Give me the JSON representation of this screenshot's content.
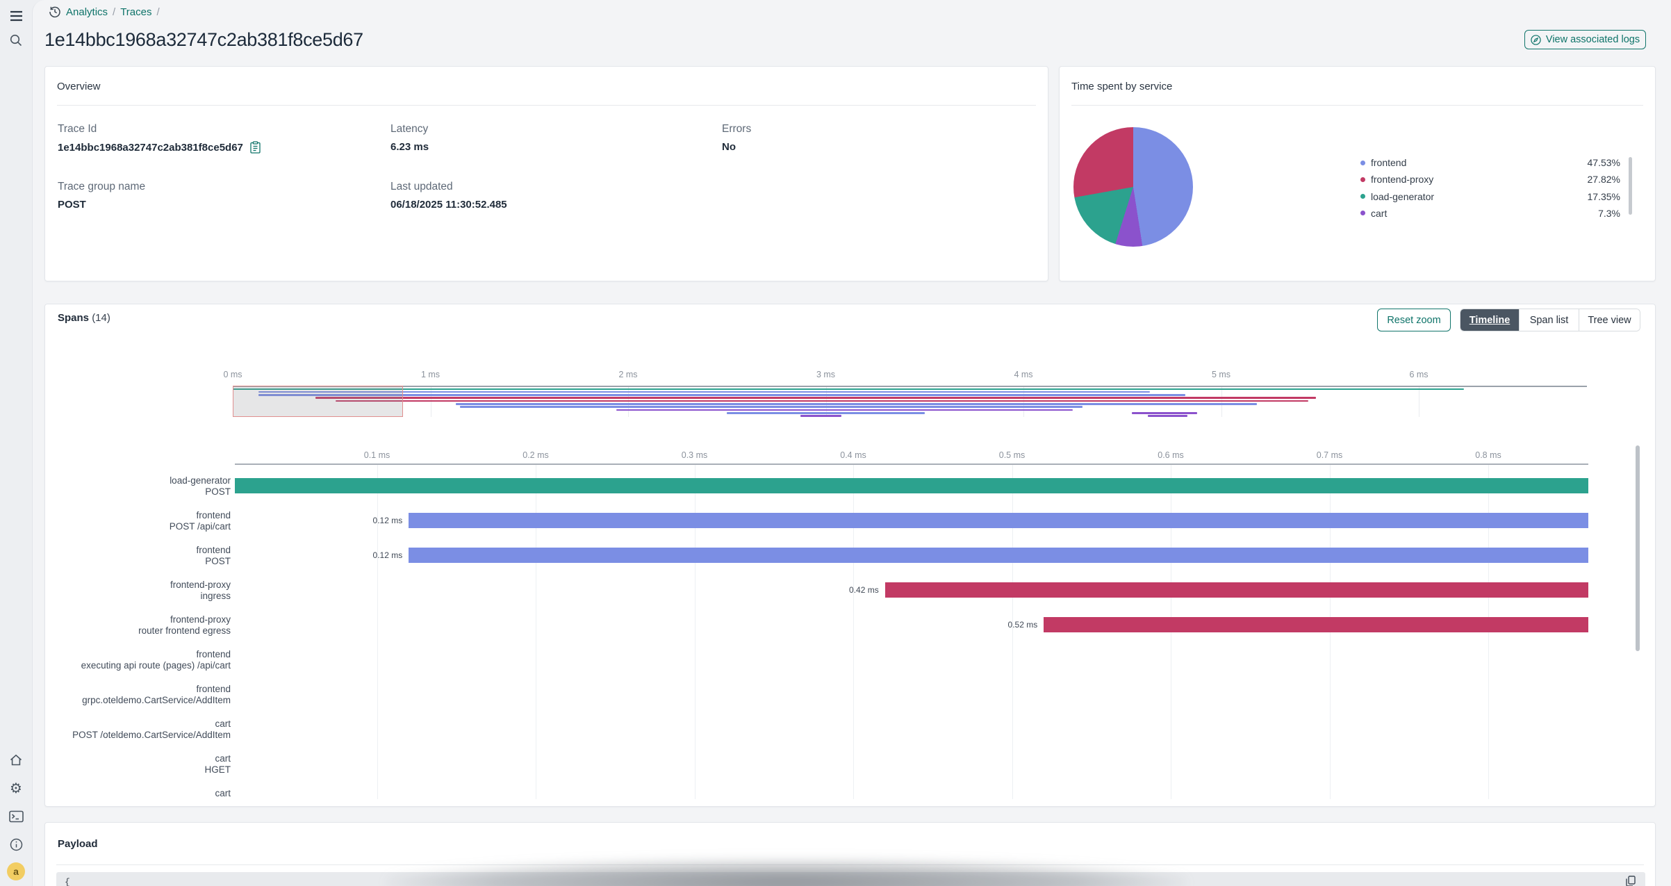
{
  "colors": {
    "accent_teal": "#0e7369",
    "active_tab_bg": "#4b5662",
    "teal": "#2ca28e",
    "blue": "#7b8ee4",
    "crimson": "#c23a64",
    "purple": "#8b52cc",
    "avatar_bg": "#f2cd62"
  },
  "sidebar": {
    "top_icons": [
      "menu",
      "search"
    ],
    "bottom_icons": [
      "home",
      "settings",
      "dev-console",
      "info"
    ],
    "avatar_letter": "a"
  },
  "breadcrumb": {
    "items": [
      "Analytics",
      "Traces"
    ],
    "separator": "/"
  },
  "header": {
    "title": "1e14bbc1968a32747c2ab381f8ce5d67",
    "view_logs_label": "View associated logs"
  },
  "overview": {
    "title": "Overview",
    "fields": [
      {
        "label": "Trace Id",
        "value": "1e14bbc1968a32747c2ab381f8ce5d67",
        "copyable": true
      },
      {
        "label": "Latency",
        "value": "6.23 ms"
      },
      {
        "label": "Errors",
        "value": "No"
      },
      {
        "label": "Trace group name",
        "value": "POST"
      },
      {
        "label": "Last updated",
        "value": "06/18/2025 11:30:52.485"
      }
    ]
  },
  "time_spent": {
    "title": "Time spent by service",
    "chart_data": {
      "type": "pie",
      "legend_position": "right",
      "series": [
        {
          "label": "frontend",
          "value": 47.53,
          "pct": "47.53%",
          "color": "#7b8ee4"
        },
        {
          "label": "frontend-proxy",
          "value": 27.82,
          "pct": "27.82%",
          "color": "#c23a64"
        },
        {
          "label": "load-generator",
          "value": 17.35,
          "pct": "17.35%",
          "color": "#2ca28e"
        },
        {
          "label": "cart",
          "value": 7.3,
          "pct": "7.3%",
          "color": "#8b52cc"
        }
      ],
      "draw_order_clockwise_from_top": [
        0,
        3,
        2,
        1
      ]
    }
  },
  "spans": {
    "title": "Spans",
    "count": "(14)",
    "reset_label": "Reset zoom",
    "tabs": [
      {
        "label": "Timeline",
        "active": true
      },
      {
        "label": "Span list",
        "active": false
      },
      {
        "label": "Tree view",
        "active": false
      }
    ],
    "minimap": {
      "type": "gantt-overview",
      "unit": "ms",
      "ticks": [
        "0 ms",
        "1 ms",
        "2 ms",
        "3 ms",
        "4 ms",
        "5 ms",
        "6 ms"
      ],
      "axis_max_ms": 6.85,
      "selection": {
        "from_ms": 0,
        "to_ms": 0.86
      },
      "lines": [
        {
          "color": "teal",
          "start": 0.0,
          "end": 6.23,
          "lane": 0
        },
        {
          "color": "blue",
          "start": 0.13,
          "end": 4.64,
          "lane": 1
        },
        {
          "color": "blue",
          "start": 0.13,
          "end": 4.82,
          "lane": 2
        },
        {
          "color": "crimson",
          "start": 0.42,
          "end": 5.48,
          "lane": 3
        },
        {
          "color": "crimson",
          "start": 0.52,
          "end": 5.44,
          "lane": 4
        },
        {
          "color": "blue",
          "start": 1.13,
          "end": 5.18,
          "lane": 5
        },
        {
          "color": "blue",
          "start": 1.15,
          "end": 4.3,
          "lane": 6
        },
        {
          "color": "purple",
          "start": 1.94,
          "end": 4.25,
          "lane": 7
        },
        {
          "color": "blue",
          "start": 2.5,
          "end": 3.5,
          "lane": 8
        },
        {
          "color": "purple",
          "start": 4.55,
          "end": 4.88,
          "lane": 8
        },
        {
          "color": "purple",
          "start": 2.87,
          "end": 3.08,
          "lane": 9
        },
        {
          "color": "purple",
          "start": 4.63,
          "end": 4.83,
          "lane": 9
        }
      ]
    },
    "timeline": {
      "type": "gantt",
      "unit": "ms",
      "ticks": [
        "0.1 ms",
        "0.2 ms",
        "0.3 ms",
        "0.4 ms",
        "0.5 ms",
        "0.6 ms",
        "0.7 ms",
        "0.8 ms"
      ],
      "tick_values": [
        0.1,
        0.2,
        0.3,
        0.4,
        0.5,
        0.6,
        0.7,
        0.8
      ],
      "visible_range_ms": [
        0,
        0.863
      ],
      "rows": [
        {
          "service": "load-generator",
          "op": "POST",
          "color": "teal",
          "start": 0.01,
          "start_label": ""
        },
        {
          "service": "frontend",
          "op": "POST /api/cart",
          "color": "blue",
          "start": 0.12,
          "start_label": "0.12 ms"
        },
        {
          "service": "frontend",
          "op": "POST",
          "color": "blue",
          "start": 0.12,
          "start_label": "0.12 ms"
        },
        {
          "service": "frontend-proxy",
          "op": "ingress",
          "color": "crimson",
          "start": 0.42,
          "start_label": "0.42 ms"
        },
        {
          "service": "frontend-proxy",
          "op": "router frontend egress",
          "color": "crimson",
          "start": 0.52,
          "start_label": "0.52 ms"
        },
        {
          "service": "frontend",
          "op": "executing api route (pages) /api/cart",
          "color": "blue",
          "start": null,
          "start_label": ""
        },
        {
          "service": "frontend",
          "op": "grpc.oteldemo.CartService/AddItem",
          "color": "blue",
          "start": null,
          "start_label": ""
        },
        {
          "service": "cart",
          "op": "POST /oteldemo.CartService/AddItem",
          "color": "purple",
          "start": null,
          "start_label": ""
        },
        {
          "service": "cart",
          "op": "HGET",
          "color": "purple",
          "start": null,
          "start_label": ""
        },
        {
          "service": "cart",
          "op": "",
          "color": "purple",
          "start": null,
          "start_label": ""
        }
      ]
    }
  },
  "payload": {
    "title": "Payload",
    "code_preview": "{"
  }
}
